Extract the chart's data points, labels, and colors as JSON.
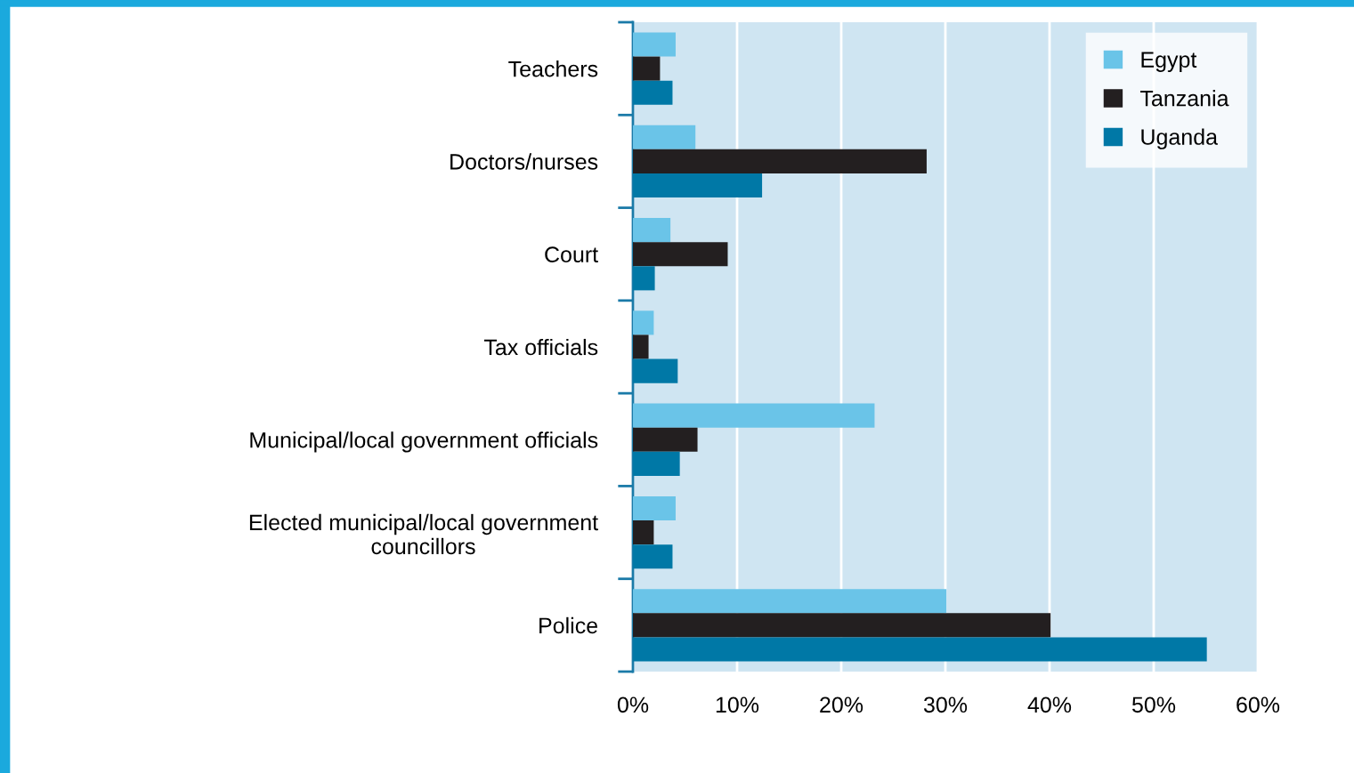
{
  "chart_data": {
    "type": "bar",
    "orientation": "horizontal",
    "categories": [
      "Teachers",
      "Doctors/nurses",
      "Court",
      "Tax officials",
      "Municipal/local government officials",
      "Elected municipal/local government\ncouncillors",
      "Police"
    ],
    "series": [
      {
        "name": "Egypt",
        "color": "#6ac4e8",
        "values": [
          4.1,
          6.0,
          3.6,
          2.0,
          23.2,
          4.1,
          30.1
        ]
      },
      {
        "name": "Tanzania",
        "color": "#231f20",
        "values": [
          2.6,
          28.2,
          9.1,
          1.5,
          6.2,
          2.0,
          40.1
        ]
      },
      {
        "name": "Uganda",
        "color": "#0078a6",
        "values": [
          3.8,
          12.4,
          2.1,
          4.3,
          4.5,
          3.8,
          55.1
        ]
      }
    ],
    "xlim": [
      0,
      60
    ],
    "xticks": [
      {
        "value": 0,
        "label": "0%"
      },
      {
        "value": 10,
        "label": "10%"
      },
      {
        "value": 20,
        "label": "20%"
      },
      {
        "value": 30,
        "label": "30%"
      },
      {
        "value": 40,
        "label": "40%"
      },
      {
        "value": 50,
        "label": "50%"
      },
      {
        "value": 60,
        "label": "60%"
      }
    ],
    "grid": "x",
    "legend": "top right"
  }
}
